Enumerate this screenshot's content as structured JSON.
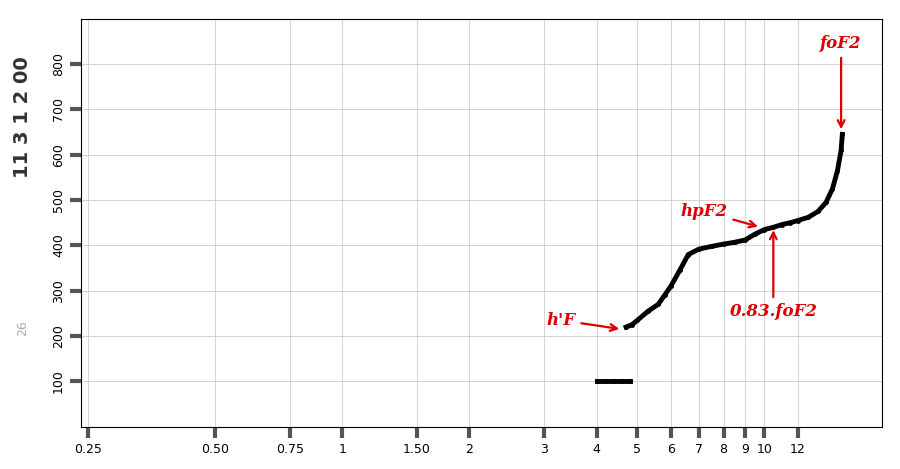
{
  "chart_data": {
    "type": "scatter",
    "xlim": [
      0.24,
      19
    ],
    "ylim": [
      0,
      900
    ],
    "log": "x",
    "grid": true,
    "xticks": [
      0.25,
      {
        "value": 0.5,
        "label": "0.50"
      },
      0.75,
      1,
      {
        "value": 1.5,
        "label": "1.50"
      },
      2,
      3,
      4,
      5,
      6,
      7,
      8,
      9,
      10,
      12
    ],
    "yticks": [
      100,
      200,
      300,
      400,
      500,
      600,
      700,
      800
    ],
    "stamp": "11 3 1 2 00",
    "stamp2": "26",
    "series": [
      {
        "color": "#000000",
        "marker": "o",
        "x": [
          4.7,
          4.85,
          5.0,
          5.3,
          5.6,
          5.8,
          6.0,
          6.3,
          6.6,
          7.0,
          7.5,
          8.0,
          8.5,
          9.0,
          9.5,
          10.0,
          10.5,
          11.0,
          11.5,
          12.0,
          12.7,
          13.4,
          14.0,
          14.5,
          14.9,
          15.2,
          15.3
        ],
        "values": [
          220,
          225,
          235,
          255,
          270,
          290,
          310,
          345,
          380,
          392,
          398,
          403,
          407,
          412,
          425,
          435,
          440,
          446,
          450,
          455,
          462,
          475,
          495,
          525,
          565,
          610,
          645
        ]
      },
      {
        "color": "#000000",
        "marker": "o",
        "x": [
          4.0,
          4.2,
          4.4,
          4.6,
          4.8
        ],
        "values": [
          100,
          100,
          100,
          100,
          100
        ]
      }
    ],
    "annotations": [
      {
        "text": "h'F",
        "x": 4.6,
        "y": 215,
        "text_x": 3.3,
        "text_y": 235,
        "color": "#dd0000"
      },
      {
        "text": "hpF2",
        "x": 9.8,
        "y": 440,
        "text_x": 7.2,
        "text_y": 475,
        "color": "#dd0000"
      },
      {
        "text": "0.83.foF2",
        "x": 10.5,
        "y": 440,
        "text_x": 10.5,
        "text_y": 255,
        "color": "#dd0000"
      },
      {
        "text": "foF2",
        "x": 15.2,
        "y": 650,
        "text_x": 15.2,
        "text_y": 845,
        "color": "#dd0000"
      }
    ]
  }
}
